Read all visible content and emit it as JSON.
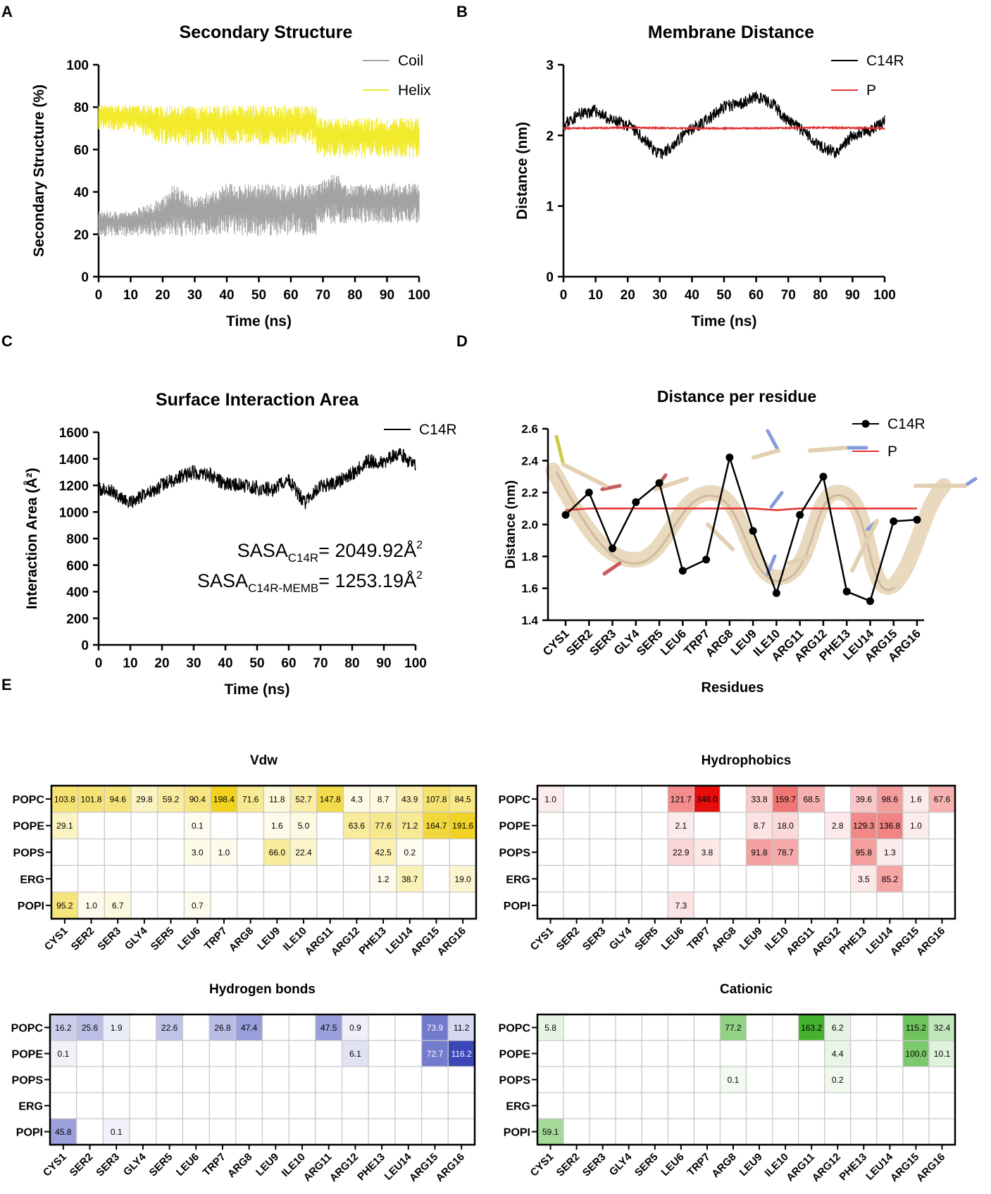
{
  "panel_letters": [
    "A",
    "B",
    "C",
    "D",
    "E"
  ],
  "chart_data": [
    {
      "id": "A",
      "type": "line",
      "title": "Secondary Structure",
      "xlabel": "Time (ns)",
      "ylabel": "Secondary Structure (%)",
      "xlim": [
        0,
        100
      ],
      "ylim": [
        0,
        100
      ],
      "xticks": [
        0,
        10,
        20,
        30,
        40,
        50,
        60,
        70,
        80,
        90,
        100
      ],
      "yticks": [
        0,
        20,
        40,
        60,
        80,
        100
      ],
      "legend_position": "top-right",
      "series": [
        {
          "name": "Coil",
          "color": "#a3a3a3",
          "fluctuation": "band",
          "x": [
            0,
            10,
            20,
            23,
            30,
            40,
            50,
            60,
            67.9,
            68,
            75,
            76,
            80,
            90,
            100
          ],
          "low": [
            19,
            19,
            19,
            19,
            19,
            19,
            19,
            19,
            19,
            25,
            25,
            25,
            25,
            25,
            25
          ],
          "high": [
            31,
            31,
            37,
            44,
            37,
            44,
            44,
            44,
            44,
            44,
            50,
            44,
            44,
            44,
            44
          ]
        },
        {
          "name": "Helix",
          "color": "#f2ea2a",
          "fluctuation": "band",
          "x": [
            0,
            10,
            20,
            30,
            40,
            50,
            60,
            67.9,
            68,
            75,
            80,
            90,
            100
          ],
          "low": [
            69,
            69,
            62,
            62,
            62,
            62,
            62,
            62,
            56,
            56,
            56,
            56,
            56
          ],
          "high": [
            81,
            81,
            81,
            81,
            81,
            81,
            81,
            81,
            75,
            75,
            75,
            75,
            75
          ]
        }
      ]
    },
    {
      "id": "B",
      "type": "line",
      "title": "Membrane Distance",
      "xlabel": "Time (ns)",
      "ylabel": "Distance (nm)",
      "xlim": [
        0,
        100
      ],
      "ylim": [
        0,
        3
      ],
      "xticks": [
        0,
        10,
        20,
        30,
        40,
        50,
        60,
        70,
        80,
        90,
        100
      ],
      "yticks": [
        0,
        1,
        2,
        3
      ],
      "legend_position": "top-right",
      "series": [
        {
          "name": "C14R",
          "color": "#000000",
          "noise": 0.09,
          "x": [
            0,
            5,
            10,
            15,
            20,
            25,
            30,
            35,
            40,
            45,
            50,
            55,
            60,
            65,
            70,
            75,
            80,
            85,
            90,
            95,
            100
          ],
          "y": [
            2.15,
            2.3,
            2.35,
            2.2,
            2.15,
            1.95,
            1.72,
            1.9,
            2.1,
            2.22,
            2.4,
            2.45,
            2.55,
            2.45,
            2.2,
            2.05,
            1.85,
            1.75,
            2.0,
            2.05,
            2.2
          ]
        },
        {
          "name": "P",
          "color": "#e53030",
          "noise": 0.008,
          "x": [
            0,
            20,
            40,
            60,
            80,
            100
          ],
          "y": [
            2.1,
            2.11,
            2.1,
            2.1,
            2.11,
            2.1
          ]
        }
      ]
    },
    {
      "id": "C",
      "type": "line",
      "title": "Surface Interaction Area",
      "xlabel": "Time (ns)",
      "ylabel": "Interaction Area (Å²)",
      "xlim": [
        0,
        100
      ],
      "ylim": [
        0,
        1600
      ],
      "xticks": [
        0,
        10,
        20,
        30,
        40,
        50,
        60,
        70,
        80,
        90,
        100
      ],
      "yticks": [
        0,
        200,
        400,
        600,
        800,
        1000,
        1200,
        1400,
        1600
      ],
      "legend_position": "top-right",
      "annotations": [
        {
          "main": "SASA",
          "sub": "C14R",
          "rest": "= 2049.92Å",
          "sup": "2"
        },
        {
          "main": "SASA",
          "sub": "C14R-MEMB",
          "rest": "= 1253.19Å",
          "sup": "2"
        }
      ],
      "series": [
        {
          "name": "C14R",
          "color": "#000000",
          "noise": 55,
          "x": [
            0,
            5,
            10,
            15,
            20,
            25,
            30,
            35,
            40,
            45,
            50,
            55,
            60,
            65,
            70,
            75,
            80,
            85,
            90,
            95,
            100
          ],
          "y": [
            1170,
            1150,
            1060,
            1140,
            1200,
            1260,
            1300,
            1280,
            1210,
            1200,
            1180,
            1170,
            1240,
            1070,
            1190,
            1220,
            1290,
            1380,
            1380,
            1440,
            1340
          ]
        }
      ]
    },
    {
      "id": "D",
      "type": "line",
      "title": "Distance per residue",
      "xlabel": "Residues",
      "ylabel": "Distance (nm)",
      "ylim": [
        1.4,
        2.6
      ],
      "yticks": [
        1.4,
        1.6,
        1.8,
        2.0,
        2.2,
        2.4,
        2.6
      ],
      "categories": [
        "CYS1",
        "SER2",
        "SER3",
        "GLY4",
        "SER5",
        "LEU6",
        "TRP7",
        "ARG8",
        "LEU9",
        "ILE10",
        "ARG11",
        "ARG12",
        "PHE13",
        "LEU14",
        "ARG15",
        "ARG16"
      ],
      "legend_position": "top-right",
      "series": [
        {
          "name": "C14R",
          "color": "#000000",
          "marker": "circle",
          "values": [
            2.06,
            2.2,
            1.85,
            2.14,
            2.26,
            1.71,
            1.78,
            2.42,
            1.96,
            1.57,
            2.06,
            2.3,
            1.58,
            1.52,
            2.02,
            2.03
          ]
        },
        {
          "name": "P",
          "color": "#e53030",
          "values": [
            2.09,
            2.1,
            2.1,
            2.1,
            2.1,
            2.1,
            2.1,
            2.1,
            2.1,
            2.09,
            2.1,
            2.1,
            2.1,
            2.1,
            2.1,
            2.1
          ]
        }
      ]
    },
    {
      "id": "E-vdw",
      "type": "heatmap",
      "title": "Vdw",
      "rows": [
        "POPC",
        "POPE",
        "POPS",
        "ERG",
        "POPI"
      ],
      "columns": [
        "CYS1",
        "SER2",
        "SER3",
        "GLY4",
        "SER5",
        "LEU6",
        "TRP7",
        "ARG8",
        "LEU9",
        "ILE10",
        "ARG11",
        "ARG12",
        "PHE13",
        "LEU14",
        "ARG15",
        "ARG16"
      ],
      "vmax": 200,
      "color_high": "#f0d21e",
      "cells": [
        [
          "103.8",
          "101.8",
          "94.6",
          "29.8",
          "59.2",
          "90.4",
          "198.4",
          "71.6",
          "11.8",
          "52.7",
          "147.8",
          "4.3",
          "8.7",
          "43.9",
          "107.8",
          "84.5"
        ],
        [
          "29.1",
          "",
          "",
          "",
          "",
          "0.1",
          "",
          "",
          "1.6",
          "5.0",
          "",
          "63.6",
          "77.6",
          "71.2",
          "164.7",
          "191.6"
        ],
        [
          "",
          "",
          "",
          "",
          "",
          "3.0",
          "1.0",
          "",
          "66.0",
          "22.4",
          "",
          "",
          "42.5",
          "0.2",
          "",
          ""
        ],
        [
          "",
          "",
          "",
          "",
          "",
          "",
          "",
          "",
          "",
          "",
          "",
          "",
          "1.2",
          "38.7",
          "",
          "19.0"
        ],
        [
          "95.2",
          "1.0",
          "6.7",
          "",
          "",
          "0.7",
          "",
          "",
          "",
          "",
          "",
          "",
          "",
          "",
          "",
          ""
        ]
      ]
    },
    {
      "id": "E-hydrophobics",
      "type": "heatmap",
      "title": "Hydrophobics",
      "rows": [
        "POPC",
        "POPE",
        "POPS",
        "ERG",
        "POPI"
      ],
      "columns": [
        "CYS1",
        "SER2",
        "SER3",
        "GLY4",
        "SER5",
        "LEU6",
        "TRP7",
        "ARG8",
        "LEU9",
        "ILE10",
        "ARG11",
        "ARG12",
        "PHE13",
        "LEU14",
        "ARG15",
        "ARG16"
      ],
      "vmax": 348,
      "color_high": "#e60d0d",
      "cells": [
        [
          "1.0",
          "",
          "",
          "",
          "",
          "121.7",
          "348.0",
          "",
          "33.8",
          "159.7",
          "68.5",
          "",
          "39.6",
          "98.6",
          "1.6",
          "67.6"
        ],
        [
          "",
          "",
          "",
          "",
          "",
          "2.1",
          "",
          "",
          "8.7",
          "18.0",
          "",
          "2.8",
          "129.3",
          "136.8",
          "1.0",
          ""
        ],
        [
          "",
          "",
          "",
          "",
          "",
          "22.9",
          "3.8",
          "",
          "91.8",
          "78.7",
          "",
          "",
          "95.8",
          "1.3",
          "",
          ""
        ],
        [
          "",
          "",
          "",
          "",
          "",
          "",
          "",
          "",
          "",
          "",
          "",
          "",
          "3.5",
          "85.2",
          "",
          ""
        ],
        [
          "",
          "",
          "",
          "",
          "",
          "7.3",
          "",
          "",
          "",
          "",
          "",
          "",
          "",
          "",
          "",
          ""
        ]
      ]
    },
    {
      "id": "E-hbonds",
      "type": "heatmap",
      "title": "Hydrogen bonds",
      "rows": [
        "POPC",
        "POPE",
        "POPS",
        "ERG",
        "POPI"
      ],
      "columns": [
        "CYS1",
        "SER2",
        "SER3",
        "GLY4",
        "SER5",
        "LEU6",
        "TRP7",
        "ARG8",
        "LEU9",
        "ILE10",
        "ARG11",
        "ARG12",
        "PHE13",
        "LEU14",
        "ARG15",
        "ARG16"
      ],
      "vmax": 116,
      "color_high": "#3b46b8",
      "cells": [
        [
          "16.2",
          "25.6",
          "1.9",
          "",
          "22.6",
          "",
          "26.8",
          "47.4",
          "",
          "",
          "47.5",
          "0.9",
          "",
          "",
          "73.9",
          "11.2"
        ],
        [
          "0.1",
          "",
          "",
          "",
          "",
          "",
          "",
          "",
          "",
          "",
          "",
          "6.1",
          "",
          "",
          "72.7",
          "116.2"
        ],
        [
          "",
          "",
          "",
          "",
          "",
          "",
          "",
          "",
          "",
          "",
          "",
          "",
          "",
          "",
          "",
          ""
        ],
        [
          "",
          "",
          "",
          "",
          "",
          "",
          "",
          "",
          "",
          "",
          "",
          "",
          "",
          "",
          "",
          ""
        ],
        [
          "45.8",
          "",
          "0.1",
          "",
          "",
          "",
          "",
          "",
          "",
          "",
          "",
          "",
          "",
          "",
          "",
          ""
        ]
      ]
    },
    {
      "id": "E-cationic",
      "type": "heatmap",
      "title": "Cationic",
      "rows": [
        "POPC",
        "POPE",
        "POPS",
        "ERG",
        "POPI"
      ],
      "columns": [
        "CYS1",
        "SER2",
        "SER3",
        "GLY4",
        "SER5",
        "LEU6",
        "TRP7",
        "ARG8",
        "LEU9",
        "ILE10",
        "ARG11",
        "ARG12",
        "PHE13",
        "LEU14",
        "ARG15",
        "ARG16"
      ],
      "vmax": 163,
      "color_high": "#44b22e",
      "cells": [
        [
          "5.8",
          "",
          "",
          "",
          "",
          "",
          "",
          "77.2",
          "",
          "",
          "163.2",
          "6.2",
          "",
          "",
          "115.2",
          "32.4"
        ],
        [
          "",
          "",
          "",
          "",
          "",
          "",
          "",
          "",
          "",
          "",
          "",
          "4.4",
          "",
          "",
          "100.0",
          "10.1"
        ],
        [
          "",
          "",
          "",
          "",
          "",
          "",
          "",
          "0.1",
          "",
          "",
          "",
          "0.2",
          "",
          "",
          "",
          ""
        ],
        [
          "",
          "",
          "",
          "",
          "",
          "",
          "",
          "",
          "",
          "",
          "",
          "",
          "",
          "",
          "",
          ""
        ],
        [
          "59.1",
          "",
          "",
          "",
          "",
          "",
          "",
          "",
          "",
          "",
          "",
          "",
          "",
          "",
          "",
          ""
        ]
      ]
    }
  ]
}
